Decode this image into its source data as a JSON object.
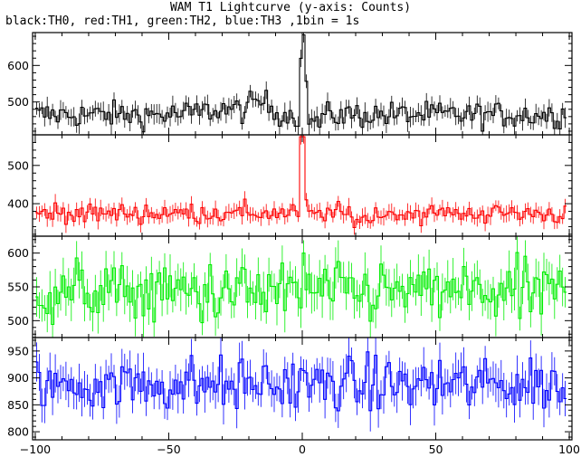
{
  "title": "WAM T1 Lightcurve (y-axis: Counts)",
  "subtitle": "black:TH0, red:TH1, green:TH2, blue:TH3 ,1bin = 1s",
  "chart_data": {
    "type": "line",
    "xlabel": "",
    "ylabel": "Counts",
    "xlim": [
      -101,
      101
    ],
    "x_ticks": [
      -100,
      -50,
      0,
      50,
      100
    ],
    "x_tick_labels": [
      "−100",
      "−50",
      "0",
      "50",
      "100"
    ],
    "grid": false,
    "style": "histogram step with error bars",
    "series": [
      {
        "name": "TH0",
        "color": "#000000",
        "ylim": [
          410,
          690
        ],
        "y_ticks": [
          500,
          600
        ],
        "baseline": 465,
        "noise": 18,
        "error": 22,
        "features": [
          {
            "type": "bump",
            "center": -16,
            "width": 5,
            "height": 35
          },
          {
            "type": "bump",
            "center": -30,
            "width": 10,
            "height": 15
          },
          {
            "type": "spike",
            "x": [
              -1,
              0
            ],
            "values": [
              620,
              685
            ]
          },
          {
            "type": "spike",
            "x": [
              1
            ],
            "values": [
              560
            ]
          },
          {
            "type": "dip",
            "center": 5,
            "width": 3,
            "depth": 20
          }
        ]
      },
      {
        "name": "TH1",
        "color": "#ff0000",
        "ylim": [
          315,
          580
        ],
        "y_ticks": [
          400,
          500
        ],
        "baseline": 375,
        "noise": 13,
        "error": 18,
        "features": [
          {
            "type": "spike",
            "x": [
              -1,
              0
            ],
            "values": [
              575,
              575
            ]
          },
          {
            "type": "spike",
            "x": [
              1
            ],
            "values": [
              410
            ]
          },
          {
            "type": "dip",
            "center": 22,
            "width": 4,
            "depth": 18
          }
        ]
      },
      {
        "name": "TH2",
        "color": "#00ee00",
        "ylim": [
          475,
          625
        ],
        "y_ticks": [
          500,
          550,
          600
        ],
        "baseline": 542,
        "noise": 22,
        "error": 25,
        "features": [
          {
            "type": "spike",
            "x": [
              0
            ],
            "values": [
              600
            ]
          }
        ]
      },
      {
        "name": "TH3",
        "color": "#0000ff",
        "ylim": [
          785,
          975
        ],
        "y_ticks": [
          800,
          850,
          900,
          950
        ],
        "baseline": 888,
        "noise": 25,
        "error": 30,
        "features": []
      }
    ]
  }
}
